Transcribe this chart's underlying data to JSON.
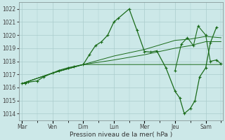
{
  "background_color": "#cce8e8",
  "grid_color": "#aacccc",
  "line_color": "#1a6b1a",
  "xlabel": "Pression niveau de la mer( hPa )",
  "ylim": [
    1013.5,
    1022.5
  ],
  "yticks": [
    1014,
    1015,
    1016,
    1017,
    1018,
    1019,
    1020,
    1021,
    1022
  ],
  "day_labels": [
    "Mar",
    "Ven",
    "Dim",
    "Lun",
    "Mer",
    "Jeu",
    "Sam"
  ],
  "day_positions": [
    0,
    1,
    2,
    3,
    4,
    5,
    6
  ],
  "xlim": [
    -0.1,
    6.55
  ],
  "main_x": [
    0.0,
    0.1,
    0.2,
    0.5,
    0.7,
    1.0,
    1.2,
    1.5,
    1.7,
    2.0,
    2.2,
    2.4,
    2.6,
    2.8,
    3.0,
    3.15,
    3.5,
    3.75,
    4.0,
    4.2,
    4.4,
    4.7,
    5.0,
    5.15,
    5.3,
    5.5,
    5.65,
    5.8,
    6.0,
    6.15,
    6.35
  ],
  "main_y": [
    1016.3,
    1016.3,
    1016.4,
    1016.5,
    1016.8,
    1017.1,
    1017.3,
    1017.5,
    1017.6,
    1017.75,
    1018.5,
    1019.2,
    1019.5,
    1020.0,
    1021.0,
    1021.3,
    1022.0,
    1020.4,
    1018.75,
    1018.7,
    1018.8,
    1017.5,
    1015.7,
    1015.2,
    1014.0,
    1014.4,
    1015.0,
    1016.8,
    1017.5,
    1019.4,
    1020.6
  ],
  "flat_x": [
    0.0,
    1.0,
    2.0,
    3.0,
    4.0,
    5.0,
    5.5,
    6.0,
    6.5
  ],
  "flat_y": [
    1016.3,
    1017.1,
    1017.75,
    1017.75,
    1017.75,
    1017.75,
    1017.75,
    1017.75,
    1017.75
  ],
  "rise1_x": [
    0.0,
    1.0,
    2.0,
    3.0,
    4.0,
    5.0,
    5.5,
    6.0,
    6.5
  ],
  "rise1_y": [
    1016.3,
    1017.1,
    1017.75,
    1018.1,
    1018.5,
    1019.0,
    1019.2,
    1019.5,
    1019.5
  ],
  "rise2_x": [
    0.0,
    1.0,
    2.0,
    3.0,
    4.0,
    5.0,
    5.5,
    6.0,
    6.5
  ],
  "rise2_y": [
    1016.3,
    1017.1,
    1017.75,
    1018.4,
    1018.9,
    1019.6,
    1019.7,
    1019.9,
    1019.8
  ],
  "end_x": [
    5.0,
    5.2,
    5.4,
    5.6,
    5.75,
    6.0,
    6.15,
    6.35,
    6.5
  ],
  "end_y": [
    1017.3,
    1019.3,
    1019.8,
    1019.2,
    1020.7,
    1020.0,
    1018.0,
    1018.1,
    1017.8
  ]
}
